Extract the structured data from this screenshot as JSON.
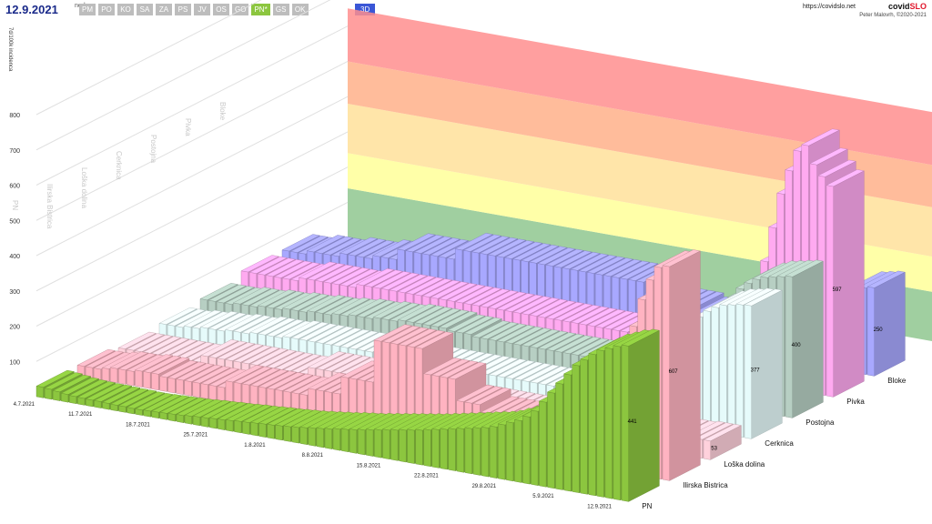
{
  "header": {
    "date": "12.9.2021",
    "date_sup": "ned",
    "tabs": [
      {
        "label": "PM",
        "active": false
      },
      {
        "label": "PO",
        "active": false
      },
      {
        "label": "KO",
        "active": false
      },
      {
        "label": "SA",
        "active": false
      },
      {
        "label": "ZA",
        "active": false
      },
      {
        "label": "PS",
        "active": false
      },
      {
        "label": "JV",
        "active": false
      },
      {
        "label": "OS",
        "active": false
      },
      {
        "label": "GO",
        "active": false
      },
      {
        "label": "PN*",
        "active": true
      },
      {
        "label": "GS",
        "active": false
      },
      {
        "label": "OK",
        "active": false
      }
    ],
    "mode_label": "3D",
    "url": "https://covidslo.net",
    "brand_prefix": "covid",
    "brand_suffix": "SLO",
    "author": "Peter Malovrh, ©2020-2021"
  },
  "chart_data": {
    "type": "bar",
    "ylabel": "7d/100k incidenca",
    "ylim": [
      0,
      850
    ],
    "yticks": [
      100,
      200,
      300,
      400,
      500,
      600,
      700,
      800
    ],
    "x_ticks": [
      "4.7.2021",
      "11.7.2021",
      "18.7.2021",
      "25.7.2021",
      "1.8.2021",
      "8.8.2021",
      "15.8.2021",
      "22.8.2021",
      "29.8.2021",
      "5.9.2021",
      "12.9.2021"
    ],
    "bands": [
      {
        "from": 0,
        "to": 140,
        "color": "#8fc78f"
      },
      {
        "from": 140,
        "to": 240,
        "color": "#ffff99"
      },
      {
        "from": 240,
        "to": 380,
        "color": "#ffe19a"
      },
      {
        "from": 380,
        "to": 500,
        "color": "#ffb08a"
      },
      {
        "from": 500,
        "to": 650,
        "color": "#ff8e8e"
      }
    ],
    "series": [
      {
        "name": "PN",
        "color": "#8cc63f",
        "last_value": 441,
        "values": [
          30,
          28,
          25,
          22,
          20,
          19,
          18,
          18,
          17,
          16,
          16,
          15,
          15,
          16,
          17,
          18,
          19,
          20,
          22,
          24,
          25,
          27,
          28,
          30,
          32,
          33,
          35,
          37,
          38,
          40,
          42,
          44,
          47,
          50,
          53,
          56,
          60,
          63,
          66,
          70,
          74,
          78,
          82,
          86,
          90,
          94,
          98,
          103,
          108,
          113,
          118,
          123,
          128,
          133,
          138,
          145,
          155,
          165,
          175,
          190,
          210,
          240,
          270,
          300,
          330,
          360,
          380,
          400,
          415,
          425,
          435,
          441
        ]
      },
      {
        "name": "Ilirska Bistrica",
        "color": "#ffb3c1",
        "last_value": 607,
        "values": [
          30,
          30,
          30,
          35,
          40,
          40,
          40,
          45,
          45,
          45,
          40,
          40,
          40,
          40,
          40,
          40,
          40,
          40,
          60,
          60,
          60,
          60,
          60,
          60,
          60,
          60,
          60,
          60,
          80,
          80,
          80,
          80,
          130,
          130,
          130,
          130,
          250,
          250,
          250,
          250,
          250,
          250,
          180,
          180,
          180,
          180,
          120,
          120,
          120,
          100,
          100,
          100,
          100,
          60,
          60,
          60,
          60,
          60,
          80,
          80,
          80,
          80,
          90,
          120,
          120,
          200,
          280,
          420,
          500,
          560,
          600,
          607
        ]
      },
      {
        "name": "Loška dolina",
        "color": "#ffd1dc",
        "last_value": 53,
        "values": [
          20,
          20,
          20,
          20,
          20,
          20,
          20,
          20,
          20,
          20,
          40,
          40,
          40,
          40,
          40,
          40,
          40,
          40,
          40,
          40,
          40,
          40,
          40,
          60,
          60,
          60,
          60,
          60,
          60,
          60,
          60,
          60,
          60,
          60,
          60,
          60,
          60,
          60,
          40,
          40,
          40,
          40,
          40,
          40,
          40,
          40,
          40,
          40,
          40,
          40,
          40,
          40,
          40,
          40,
          40,
          40,
          40,
          40,
          40,
          40,
          40,
          40,
          40,
          40,
          40,
          50,
          50,
          50,
          50,
          53,
          53,
          53
        ]
      },
      {
        "name": "Cerknica",
        "color": "#e6fbfb",
        "last_value": 377,
        "values": [
          30,
          30,
          30,
          35,
          35,
          40,
          40,
          40,
          45,
          45,
          45,
          50,
          50,
          50,
          50,
          55,
          55,
          55,
          55,
          55,
          55,
          55,
          55,
          55,
          55,
          55,
          55,
          55,
          50,
          50,
          50,
          50,
          50,
          50,
          50,
          50,
          50,
          50,
          50,
          50,
          50,
          50,
          50,
          50,
          50,
          50,
          50,
          50,
          50,
          50,
          50,
          50,
          50,
          50,
          50,
          50,
          60,
          60,
          80,
          100,
          140,
          180,
          220,
          260,
          290,
          320,
          340,
          355,
          365,
          370,
          375,
          377
        ]
      },
      {
        "name": "Postojna",
        "color": "#b7cfc3",
        "last_value": 400,
        "values": [
          40,
          40,
          40,
          40,
          45,
          45,
          45,
          50,
          50,
          50,
          55,
          55,
          55,
          60,
          60,
          60,
          65,
          65,
          70,
          70,
          70,
          75,
          75,
          75,
          80,
          80,
          80,
          80,
          80,
          80,
          75,
          75,
          75,
          70,
          70,
          70,
          70,
          70,
          70,
          70,
          70,
          70,
          70,
          70,
          70,
          70,
          70,
          70,
          70,
          70,
          75,
          75,
          75,
          80,
          80,
          80,
          90,
          100,
          120,
          140,
          170,
          200,
          240,
          280,
          310,
          340,
          360,
          375,
          385,
          390,
          395,
          400
        ]
      },
      {
        "name": "Pivka",
        "color": "#ffaaf0",
        "last_value": 597,
        "values": [
          60,
          60,
          60,
          60,
          60,
          60,
          60,
          70,
          70,
          70,
          70,
          70,
          70,
          70,
          80,
          80,
          80,
          80,
          80,
          80,
          80,
          80,
          80,
          80,
          80,
          80,
          80,
          80,
          80,
          80,
          80,
          80,
          80,
          80,
          80,
          80,
          80,
          80,
          80,
          80,
          80,
          80,
          80,
          80,
          80,
          80,
          80,
          80,
          80,
          80,
          80,
          80,
          80,
          80,
          80,
          90,
          90,
          90,
          100,
          120,
          140,
          180,
          250,
          350,
          450,
          550,
          620,
          680,
          700,
          650,
          620,
          597
        ]
      },
      {
        "name": "Bloke",
        "color": "#a8a8ff",
        "last_value": 250,
        "values": [
          60,
          60,
          60,
          70,
          70,
          70,
          70,
          80,
          80,
          80,
          80,
          90,
          90,
          90,
          120,
          120,
          120,
          120,
          120,
          120,
          120,
          150,
          150,
          150,
          150,
          150,
          150,
          150,
          150,
          150,
          150,
          150,
          150,
          150,
          150,
          150,
          150,
          150,
          150,
          150,
          150,
          150,
          150,
          150,
          120,
          120,
          120,
          100,
          100,
          100,
          90,
          90,
          90,
          80,
          80,
          80,
          80,
          80,
          80,
          80,
          80,
          80,
          90,
          100,
          120,
          150,
          180,
          200,
          220,
          240,
          245,
          250
        ]
      }
    ]
  }
}
